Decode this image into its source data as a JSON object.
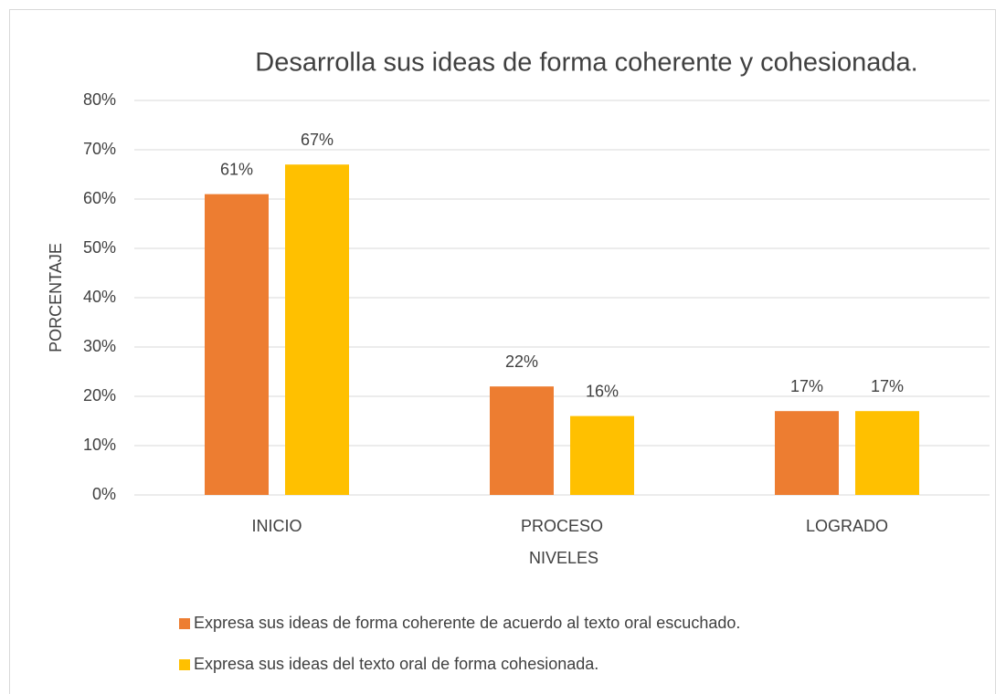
{
  "chart_data": {
    "type": "bar",
    "title": "Desarrolla sus ideas de forma coherente y cohesionada.",
    "x_label": "NIVELES",
    "y_label": "PORCENTAJE",
    "categories": [
      "INICIO",
      "PROCESO",
      "LOGRADO"
    ],
    "series": [
      {
        "name": "Expresa sus ideas de forma coherente de acuerdo al texto oral escuchado.",
        "color": "#ed7d31",
        "values": [
          61,
          22,
          17
        ],
        "value_labels": [
          "61%",
          "22%",
          "17%"
        ]
      },
      {
        "name": "Expresa sus ideas del texto oral de forma cohesionada.",
        "color": "#ffc000",
        "values": [
          67,
          16,
          17
        ],
        "value_labels": [
          "67%",
          "16%",
          "17%"
        ]
      }
    ],
    "ylim": [
      0,
      80
    ],
    "yticks": [
      {
        "value": 0,
        "label": "0%"
      },
      {
        "value": 10,
        "label": "10%"
      },
      {
        "value": 20,
        "label": "20%"
      },
      {
        "value": 30,
        "label": "30%"
      },
      {
        "value": 40,
        "label": "40%"
      },
      {
        "value": 50,
        "label": "50%"
      },
      {
        "value": 60,
        "label": "60%"
      },
      {
        "value": 70,
        "label": "70%"
      },
      {
        "value": 80,
        "label": "80%"
      }
    ],
    "grid": true,
    "legend": "bottom"
  }
}
